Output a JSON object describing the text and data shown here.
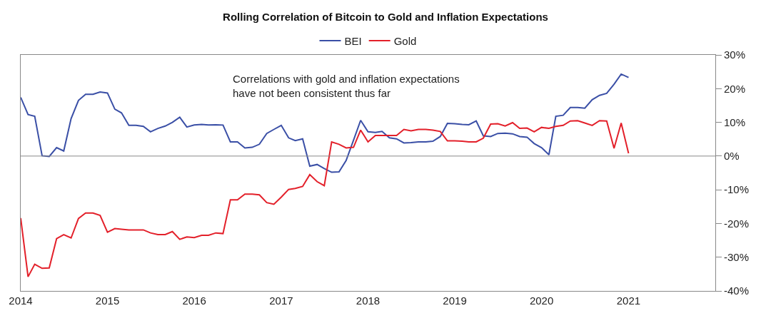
{
  "chart_data": {
    "type": "line",
    "title": "Rolling Correlation of Bitcoin to Gold and Inflation Expectations",
    "annotations": [
      "Correlations with gold and inflation expectations\nhave not been consistent thus far"
    ],
    "x": [
      "2014-01",
      "2014-02",
      "2014-03",
      "2014-04",
      "2014-05",
      "2014-06",
      "2014-07",
      "2014-08",
      "2014-09",
      "2014-10",
      "2014-11",
      "2014-12",
      "2015-01",
      "2015-02",
      "2015-03",
      "2015-04",
      "2015-05",
      "2015-06",
      "2015-07",
      "2015-08",
      "2015-09",
      "2015-10",
      "2015-11",
      "2015-12",
      "2016-01",
      "2016-02",
      "2016-03",
      "2016-04",
      "2016-05",
      "2016-06",
      "2016-07",
      "2016-08",
      "2016-09",
      "2016-10",
      "2016-11",
      "2016-12",
      "2017-01",
      "2017-02",
      "2017-03",
      "2017-04",
      "2017-05",
      "2017-06",
      "2017-07",
      "2017-08",
      "2017-09",
      "2017-10",
      "2017-11",
      "2017-12",
      "2018-01",
      "2018-02",
      "2018-03",
      "2018-04",
      "2018-05",
      "2018-06",
      "2018-07",
      "2018-08",
      "2018-09",
      "2018-10",
      "2018-11",
      "2018-12",
      "2019-01",
      "2019-02",
      "2019-03",
      "2019-04",
      "2019-05",
      "2019-06",
      "2019-07",
      "2019-08",
      "2019-09",
      "2019-10",
      "2019-11",
      "2019-12",
      "2020-01",
      "2020-02",
      "2020-03",
      "2020-04",
      "2020-05",
      "2020-06",
      "2020-07",
      "2020-08",
      "2020-09",
      "2020-10",
      "2020-11",
      "2020-12",
      "2021-01"
    ],
    "series": [
      {
        "name": "BEI",
        "color": "#3a4fa6",
        "values": [
          17.4,
          12.3,
          11.8,
          0.1,
          -0.1,
          2.5,
          1.5,
          11.1,
          16.5,
          18.3,
          18.3,
          19.0,
          18.7,
          13.9,
          12.8,
          9.1,
          9.1,
          8.8,
          7.2,
          8.2,
          8.9,
          10.0,
          11.5,
          8.6,
          9.2,
          9.4,
          9.2,
          9.3,
          9.2,
          4.2,
          4.2,
          2.4,
          2.6,
          3.5,
          6.7,
          7.9,
          9.1,
          5.4,
          4.6,
          5.1,
          -3.0,
          -2.5,
          -3.7,
          -4.8,
          -4.7,
          -1.3,
          4.7,
          10.6,
          7.2,
          7.0,
          7.3,
          5.4,
          5.1,
          3.9,
          4.0,
          4.2,
          4.2,
          4.4,
          5.8,
          9.7,
          9.6,
          9.4,
          9.3,
          10.4,
          6.0,
          5.8,
          6.7,
          6.8,
          6.6,
          5.8,
          5.6,
          3.7,
          2.5,
          0.4,
          11.8,
          12.1,
          14.4,
          14.4,
          14.2,
          16.7,
          18.0,
          18.6,
          21.3,
          24.3,
          23.3
        ]
      },
      {
        "name": "Gold",
        "color": "#e3202a",
        "values": [
          -18.4,
          -35.8,
          -32.1,
          -33.3,
          -33.2,
          -24.5,
          -23.3,
          -24.3,
          -18.5,
          -16.9,
          -16.9,
          -17.6,
          -22.6,
          -21.5,
          -21.7,
          -21.9,
          -21.9,
          -21.9,
          -22.8,
          -23.3,
          -23.3,
          -22.4,
          -24.7,
          -24.0,
          -24.2,
          -23.5,
          -23.5,
          -22.8,
          -23.0,
          -13.0,
          -13.0,
          -11.3,
          -11.3,
          -11.5,
          -13.8,
          -14.3,
          -12.2,
          -9.9,
          -9.6,
          -9.0,
          -5.5,
          -7.6,
          -8.8,
          4.2,
          3.5,
          2.4,
          2.6,
          7.7,
          4.2,
          6.1,
          6.1,
          6.1,
          6.1,
          7.9,
          7.5,
          7.9,
          7.9,
          7.7,
          7.3,
          4.5,
          4.5,
          4.4,
          4.2,
          4.2,
          5.3,
          9.5,
          9.6,
          8.9,
          9.9,
          8.2,
          8.3,
          7.2,
          8.5,
          8.2,
          8.8,
          9.1,
          10.4,
          10.5,
          9.8,
          9.1,
          10.5,
          10.4,
          2.3,
          9.8,
          0.8
        ]
      }
    ],
    "xlim": [
      "2014-01-01",
      "2022-01-01"
    ],
    "xticks": [
      "2014",
      "2015",
      "2016",
      "2017",
      "2018",
      "2019",
      "2020",
      "2021"
    ],
    "ylim": [
      -40,
      30
    ],
    "yticks": [
      {
        "value": 30,
        "label": "30%"
      },
      {
        "value": 20,
        "label": "20%"
      },
      {
        "value": 10,
        "label": "10%"
      },
      {
        "value": 0,
        "label": "0%"
      },
      {
        "value": -10,
        "label": "-10%"
      },
      {
        "value": -20,
        "label": "-20%"
      },
      {
        "value": -30,
        "label": "-30%"
      },
      {
        "value": -40,
        "label": "-40%"
      }
    ],
    "ref_lines": [
      {
        "axis": "y",
        "value": 0,
        "color": "#888888"
      }
    ],
    "legend": "top",
    "marker": "none",
    "line_style": "solid"
  }
}
